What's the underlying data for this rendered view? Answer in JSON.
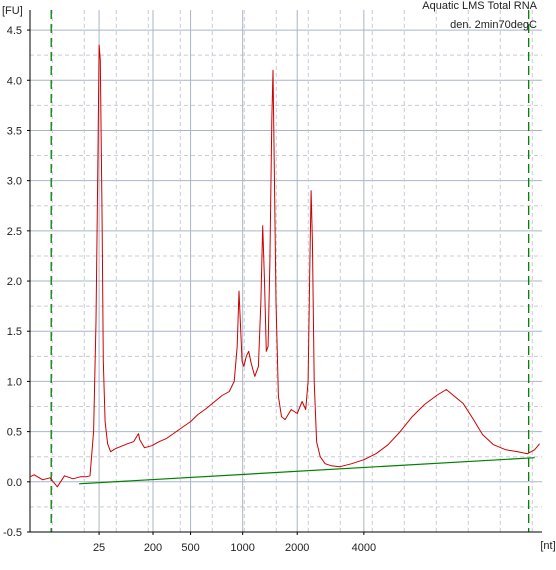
{
  "chart_data": {
    "type": "line",
    "title": "Aquatic LMS Total RNA",
    "subtitle": "den. 2min70degC",
    "ylabel": "[FU]",
    "xlabel": "[nt]",
    "ylim": [
      -0.5,
      4.7
    ],
    "y_ticks": [
      "4.5",
      "4.0",
      "3.5",
      "3.0",
      "2.5",
      "2.0",
      "1.5",
      "1.0",
      "0.5",
      "0.0",
      "-0.5"
    ],
    "y_tick_values": [
      4.5,
      4.0,
      3.5,
      3.0,
      2.5,
      2.0,
      1.5,
      1.0,
      0.5,
      0.0,
      -0.5
    ],
    "x_ticks": [
      "25",
      "200",
      "500",
      "1000",
      "2000",
      "4000"
    ],
    "grid": true,
    "colors": {
      "trace": "#cc0000",
      "baseline": "#008000",
      "markers": "#008000",
      "grid_major": "#aab4c8",
      "grid_minor": "#c8ccd4",
      "axis": "#000000"
    },
    "series": [
      {
        "role": "electropherogram",
        "points": [
          [
            -0.05,
            0.05
          ],
          [
            0.3,
            0.07
          ],
          [
            1.0,
            0.02
          ],
          [
            1.6,
            0.04
          ],
          [
            2.2,
            -0.05
          ],
          [
            2.8,
            0.06
          ],
          [
            3.5,
            0.03
          ],
          [
            4.1,
            0.05
          ],
          [
            4.6,
            0.05
          ],
          [
            4.9,
            0.06
          ],
          [
            5.2,
            0.5
          ],
          [
            5.4,
            1.6
          ],
          [
            5.55,
            3.2
          ],
          [
            5.65,
            4.35
          ],
          [
            5.75,
            4.2
          ],
          [
            5.9,
            2.6
          ],
          [
            6.0,
            1.2
          ],
          [
            6.15,
            0.6
          ],
          [
            6.35,
            0.38
          ],
          [
            6.6,
            0.3
          ],
          [
            7.0,
            0.33
          ],
          [
            7.6,
            0.36
          ],
          [
            8.0,
            0.38
          ],
          [
            8.5,
            0.4
          ],
          [
            8.9,
            0.48
          ],
          [
            9.0,
            0.42
          ],
          [
            9.4,
            0.34
          ],
          [
            10.0,
            0.36
          ],
          [
            10.6,
            0.4
          ],
          [
            11.2,
            0.43
          ],
          [
            11.9,
            0.49
          ],
          [
            12.6,
            0.55
          ],
          [
            13.2,
            0.6
          ],
          [
            13.8,
            0.67
          ],
          [
            14.5,
            0.73
          ],
          [
            15.2,
            0.8
          ],
          [
            15.8,
            0.86
          ],
          [
            16.4,
            0.9
          ],
          [
            16.8,
            1.0
          ],
          [
            17.05,
            1.35
          ],
          [
            17.2,
            1.9
          ],
          [
            17.3,
            1.6
          ],
          [
            17.45,
            1.2
          ],
          [
            17.6,
            1.15
          ],
          [
            17.8,
            1.25
          ],
          [
            18.0,
            1.3
          ],
          [
            18.2,
            1.18
          ],
          [
            18.5,
            1.05
          ],
          [
            18.8,
            1.15
          ],
          [
            19.0,
            1.8
          ],
          [
            19.15,
            2.55
          ],
          [
            19.3,
            2.0
          ],
          [
            19.45,
            1.3
          ],
          [
            19.6,
            1.35
          ],
          [
            19.75,
            2.2
          ],
          [
            19.9,
            3.6
          ],
          [
            20.0,
            4.1
          ],
          [
            20.1,
            3.2
          ],
          [
            20.25,
            1.8
          ],
          [
            20.45,
            0.85
          ],
          [
            20.7,
            0.65
          ],
          [
            21.0,
            0.62
          ],
          [
            21.5,
            0.72
          ],
          [
            22.0,
            0.68
          ],
          [
            22.4,
            0.8
          ],
          [
            22.7,
            0.72
          ],
          [
            22.9,
            1.0
          ],
          [
            23.05,
            2.2
          ],
          [
            23.15,
            2.9
          ],
          [
            23.25,
            2.4
          ],
          [
            23.4,
            1.0
          ],
          [
            23.6,
            0.4
          ],
          [
            23.9,
            0.25
          ],
          [
            24.3,
            0.18
          ],
          [
            24.8,
            0.16
          ],
          [
            25.5,
            0.15
          ],
          [
            26.5,
            0.18
          ],
          [
            27.5,
            0.22
          ],
          [
            28.5,
            0.28
          ],
          [
            29.5,
            0.37
          ],
          [
            30.5,
            0.5
          ],
          [
            31.5,
            0.65
          ],
          [
            32.5,
            0.77
          ],
          [
            33.5,
            0.86
          ],
          [
            34.3,
            0.92
          ],
          [
            35.0,
            0.85
          ],
          [
            35.7,
            0.78
          ],
          [
            36.5,
            0.63
          ],
          [
            37.3,
            0.47
          ],
          [
            38.2,
            0.37
          ],
          [
            39.2,
            0.32
          ],
          [
            40.2,
            0.3
          ],
          [
            41.0,
            0.28
          ],
          [
            41.6,
            0.32
          ],
          [
            42.0,
            0.38
          ]
        ]
      },
      {
        "role": "baseline",
        "points": [
          [
            4.0,
            -0.02
          ],
          [
            41.6,
            0.24
          ]
        ]
      }
    ],
    "x_tick_positions": [
      5.65,
      10.1,
      13.2,
      17.5,
      22.0,
      27.5
    ],
    "marker_positions": [
      1.7,
      41.1
    ],
    "x_domain": [
      -0.05,
      42.2
    ]
  }
}
